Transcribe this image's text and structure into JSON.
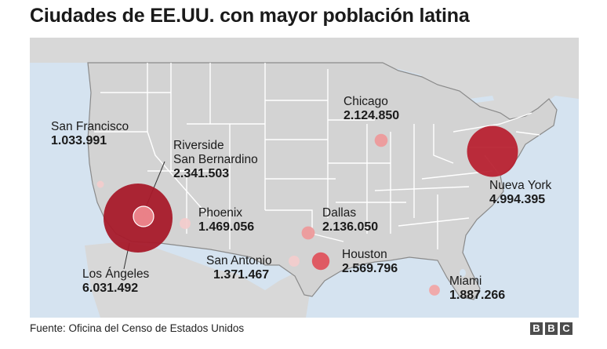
{
  "title": "Ciudades de EE.UU. con mayor población latina",
  "source": "Fuente: Oficina del Censo de Estados Unidos",
  "logo": [
    "B",
    "B",
    "C"
  ],
  "colors": {
    "ocean": "#d5e3f0",
    "land": "#d3d3d3",
    "state_border": "#ffffff",
    "country_border": "#8a8a8a",
    "bubble_scale": [
      "#f1c6c6",
      "#f09999",
      "#e25a62",
      "#b71c2c",
      "#9e1526"
    ]
  },
  "cities": [
    {
      "name": "Los Ángeles",
      "population": "6.031.492",
      "value": 6031492
    },
    {
      "name": "Nueva York",
      "population": "4.994.395",
      "value": 4994395
    },
    {
      "name": "Houston",
      "population": "2.569.796",
      "value": 2569796
    },
    {
      "name": "Riverside\nSan Bernardino",
      "population": "2.341.503",
      "value": 2341503
    },
    {
      "name": "Dallas",
      "population": "2.136.050",
      "value": 2136050
    },
    {
      "name": "Chicago",
      "population": "2.124.850",
      "value": 2124850
    },
    {
      "name": "Miami",
      "population": "1.887.266",
      "value": 1887266
    },
    {
      "name": "Phoenix",
      "population": "1.469.056",
      "value": 1469056
    },
    {
      "name": "San Antonio",
      "population": "1.371.467",
      "value": 1371467
    },
    {
      "name": "San Francisco",
      "population": "1.033.991",
      "value": 1033991
    }
  ]
}
